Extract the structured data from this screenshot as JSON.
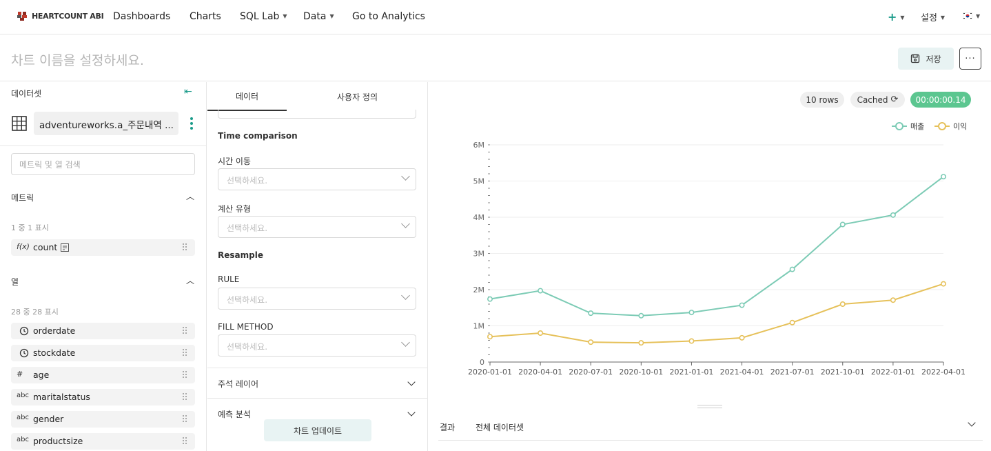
{
  "brand": {
    "name": "HEARTCOUNT ABI"
  },
  "nav": {
    "items": [
      "Dashboards",
      "Charts",
      "SQL Lab",
      "Data",
      "Go to Analytics"
    ],
    "settings": "설정",
    "plus": "+"
  },
  "header": {
    "title_placeholder": "차트 이름을 설정하세요.",
    "save_label": "저장",
    "more_label": "···"
  },
  "left": {
    "title": "데이터셋",
    "dataset_name": "adventureworks.a_주문내역 ...",
    "search_placeholder": "메트릭 및 열 검색",
    "metrics_title": "메트릭",
    "metrics_count": "1 중 1 표시",
    "metrics": [
      {
        "icon": "f(x)",
        "label": "count"
      }
    ],
    "columns_title": "열",
    "columns_count": "28 중 28 표시",
    "columns": [
      {
        "icon": "clock",
        "label": "orderdate"
      },
      {
        "icon": "clock",
        "label": "stockdate"
      },
      {
        "icon": "#",
        "label": "age"
      },
      {
        "icon": "abc",
        "label": "maritalstatus"
      },
      {
        "icon": "abc",
        "label": "gender"
      },
      {
        "icon": "abc",
        "label": "productsize"
      }
    ]
  },
  "mid": {
    "tabs": [
      "데이터",
      "사용자 정의"
    ],
    "time_comparison": "Time comparison",
    "time_shift_label": "시간 이동",
    "calc_type_label": "계산 유형",
    "resample": "Resample",
    "rule_label": "RULE",
    "fill_label": "FILL METHOD",
    "select_placeholder": "선택하세요.",
    "annotation_layer": "주석 레이어",
    "forecast": "예측 분석",
    "update_button": "차트 업데이트"
  },
  "right": {
    "rows_pill": "10 rows",
    "cached_pill": "Cached",
    "time_pill": "00:00:00.14",
    "bottom_tabs": [
      "결과",
      "전체 데이터셋"
    ]
  },
  "colors": {
    "teal": "#7ccbb5",
    "gold": "#e6c15a",
    "accent": "#1a9b8a",
    "green_pill": "#5cc690"
  },
  "chart_data": {
    "type": "line",
    "x": [
      "2020-01-01",
      "2020-04-01",
      "2020-07-01",
      "2020-10-01",
      "2021-01-01",
      "2021-04-01",
      "2021-07-01",
      "2021-10-01",
      "2022-01-01",
      "2022-04-01"
    ],
    "series": [
      {
        "name": "매출",
        "color": "#7ccbb5",
        "values": [
          1740000,
          1970000,
          1350000,
          1280000,
          1370000,
          1570000,
          2560000,
          3800000,
          4060000,
          5120000
        ]
      },
      {
        "name": "이익",
        "color": "#e6c15a",
        "values": [
          700000,
          800000,
          550000,
          530000,
          580000,
          670000,
          1090000,
          1600000,
          1710000,
          2160000
        ]
      }
    ],
    "y_ticks": [
      "0",
      "1M",
      "2M",
      "3M",
      "4M",
      "5M",
      "6M"
    ],
    "ylim": [
      0,
      6000000
    ],
    "grid": true,
    "legend": "top-right"
  }
}
